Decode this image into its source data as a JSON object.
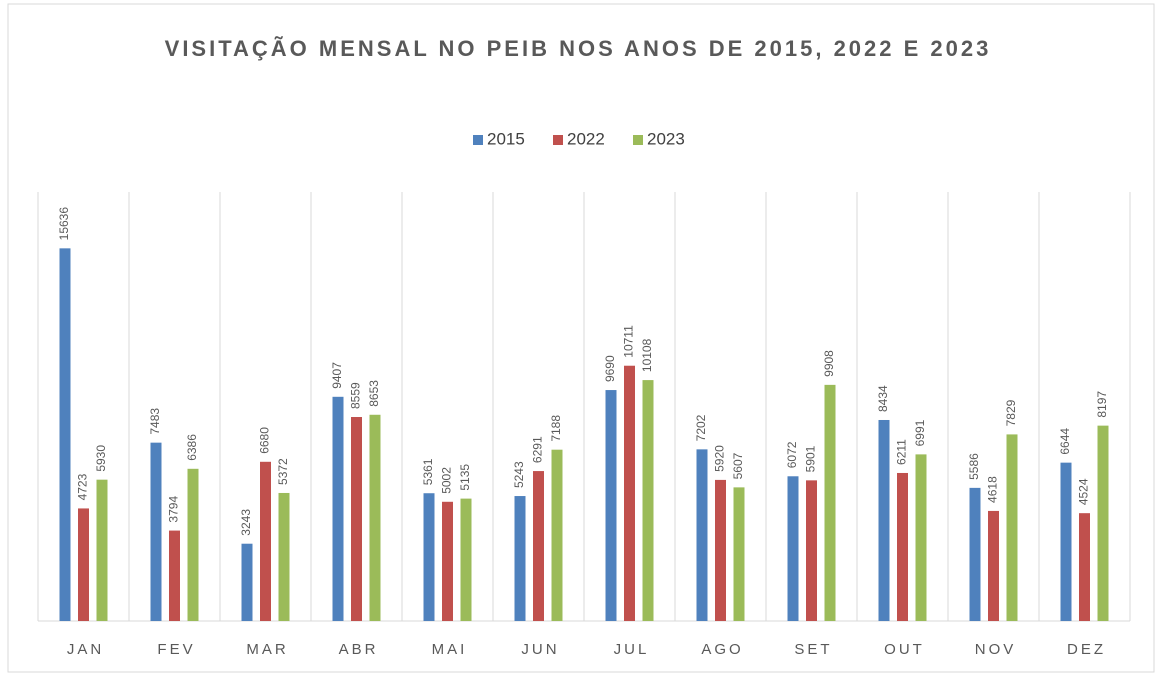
{
  "chart_data": {
    "type": "bar",
    "title": "VISITAÇÃO MENSAL NO PEIB NOS ANOS DE 2015, 2022 E 2023",
    "categories": [
      "JAN",
      "FEV",
      "MAR",
      "ABR",
      "MAI",
      "JUN",
      "JUL",
      "AGO",
      "SET",
      "OUT",
      "NOV",
      "DEZ"
    ],
    "series": [
      {
        "name": "2015",
        "color": "#4f81bd",
        "values": [
          15636,
          7483,
          3243,
          9407,
          5361,
          5243,
          9690,
          7202,
          6072,
          8434,
          5586,
          6644
        ]
      },
      {
        "name": "2022",
        "color": "#c0504d",
        "values": [
          4723,
          3794,
          6680,
          8559,
          5002,
          6291,
          10711,
          5920,
          5901,
          6211,
          4618,
          4524
        ]
      },
      {
        "name": "2023",
        "color": "#9bbb59",
        "values": [
          5930,
          6386,
          5372,
          8653,
          5135,
          7188,
          10108,
          5607,
          9908,
          6991,
          7829,
          8197
        ]
      }
    ],
    "ylim": [
      0,
      18000
    ],
    "grid": "vertical",
    "legend": "top"
  }
}
